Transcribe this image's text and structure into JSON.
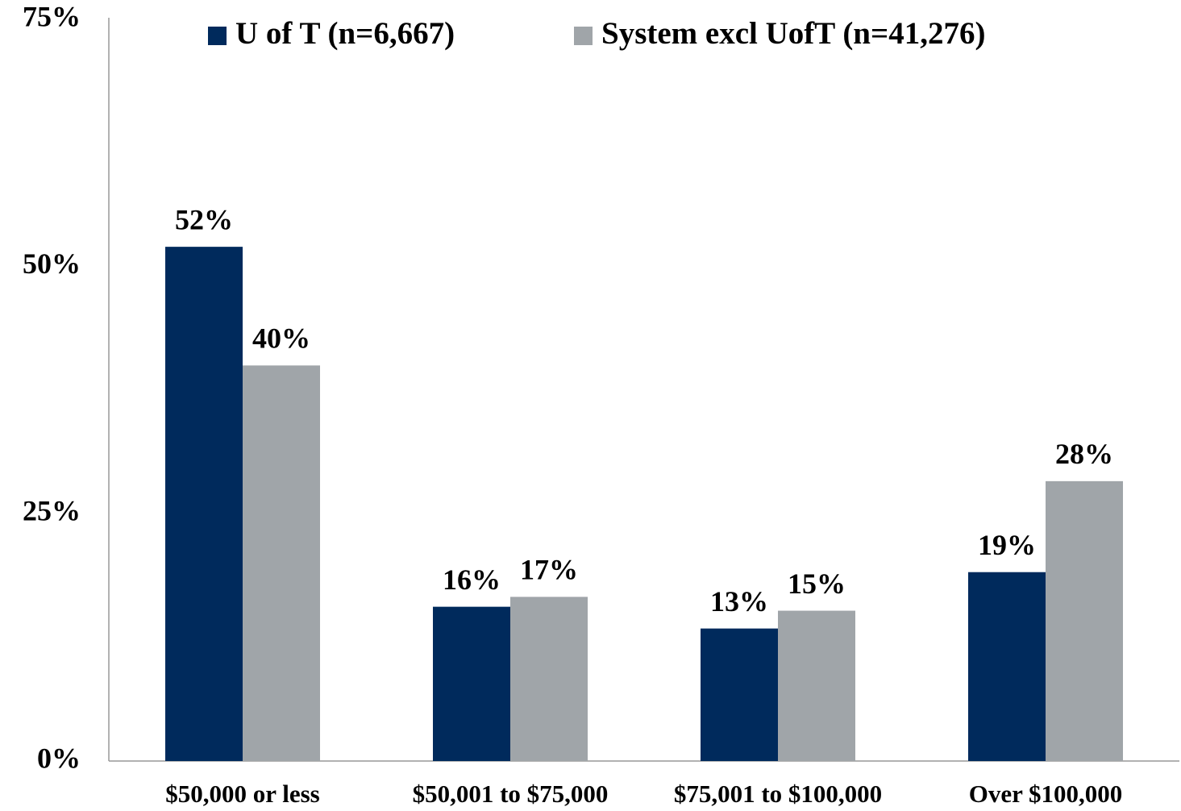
{
  "chart_data": {
    "type": "bar",
    "categories": [
      "$50,000 or less",
      "$50,001 to $75,000",
      "$75,001 to $100,000",
      "Over $100,000"
    ],
    "series": [
      {
        "name": "U of T (n=6,667)",
        "color": "#002a5c",
        "values": [
          52,
          15.6,
          13.4,
          19.1
        ],
        "value_labels": [
          "52%",
          "16%",
          "13%",
          "19%"
        ]
      },
      {
        "name": "System excl UofT (n=41,276)",
        "color": "#a0a5a9",
        "values": [
          40,
          16.6,
          15.2,
          28.3
        ],
        "value_labels": [
          "40%",
          "17%",
          "15%",
          "28%"
        ]
      }
    ],
    "ylim": [
      0,
      75
    ],
    "yticks": [
      {
        "value": 0,
        "label": "0%"
      },
      {
        "value": 25,
        "label": "25%"
      },
      {
        "value": 50,
        "label": "50%"
      },
      {
        "value": 75,
        "label": "75%"
      }
    ],
    "grid": false,
    "legend": "top"
  }
}
